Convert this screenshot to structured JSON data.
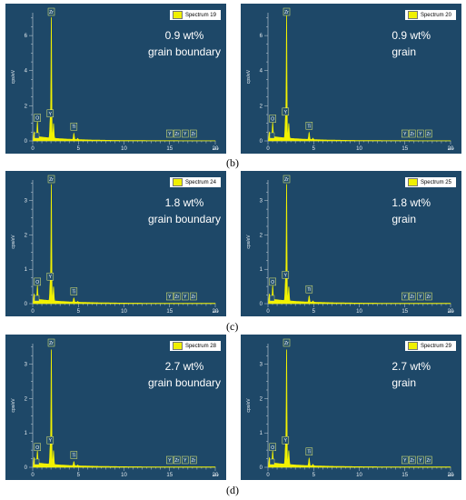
{
  "panels": [
    {
      "spectrum": "Spectrum 19",
      "line1": "0.9 wt%",
      "line2": "grain boundary",
      "y_unit": "cps/eV",
      "x_unit": "keV",
      "y_ticks": [
        "0",
        "2",
        "4",
        "6"
      ],
      "ylim": [
        0,
        7.3
      ],
      "peak_labels": [
        "O",
        "Zr",
        "Y",
        "Ti",
        "Y",
        "Zr",
        "Y",
        "Zr"
      ]
    },
    {
      "spectrum": "Spectrum 20",
      "line1": "0.9 wt%",
      "line2": "grain",
      "y_unit": "cps/eV",
      "x_unit": "keV",
      "y_ticks": [
        "0",
        "2",
        "4",
        "6"
      ],
      "ylim": [
        0,
        7.3
      ],
      "peak_labels": [
        "O",
        "Zr",
        "Y",
        "Ti",
        "Y",
        "Zr",
        "Y",
        "Zr"
      ]
    },
    {
      "spectrum": "Spectrum 24",
      "line1": "1.8 wt%",
      "line2": "grain boundary",
      "y_unit": "cps/eV",
      "x_unit": "keV",
      "y_ticks": [
        "0",
        "1",
        "2",
        "3"
      ],
      "ylim": [
        0,
        3.6
      ],
      "peak_labels": [
        "O",
        "Zr",
        "Y",
        "Ti",
        "Y",
        "Zr",
        "Y",
        "Zr"
      ]
    },
    {
      "spectrum": "Spectrum 25",
      "line1": "1.8 wt%",
      "line2": "grain",
      "y_unit": "cps/eV",
      "x_unit": "keV",
      "y_ticks": [
        "0",
        "1",
        "2",
        "3"
      ],
      "ylim": [
        0,
        3.6
      ],
      "peak_labels": [
        "O",
        "Zr",
        "Y",
        "Ti",
        "Y",
        "Zr",
        "Y",
        "Zr"
      ]
    },
    {
      "spectrum": "Spectrum 28",
      "line1": "2.7 wt%",
      "line2": "grain boundary",
      "y_unit": "cps/eV",
      "x_unit": "keV",
      "y_ticks": [
        "0",
        "1",
        "2",
        "3"
      ],
      "ylim": [
        0,
        3.6
      ],
      "peak_labels": [
        "O",
        "Zr",
        "Y",
        "Ti",
        "Y",
        "Zr",
        "Y",
        "Zr"
      ]
    },
    {
      "spectrum": "Spectrum 29",
      "line1": "2.7 wt%",
      "line2": "grain",
      "y_unit": "cps/eV",
      "x_unit": "keV",
      "y_ticks": [
        "0",
        "1",
        "2",
        "3"
      ],
      "ylim": [
        0,
        3.6
      ],
      "peak_labels": [
        "O",
        "Zr",
        "Y",
        "Ti",
        "Y",
        "Zr",
        "Y",
        "Zr"
      ]
    }
  ],
  "x_ticks": [
    "0",
    "5",
    "10",
    "15",
    "20"
  ],
  "row_labels": [
    "(b)",
    "(c)",
    "(d)"
  ],
  "chart_data": [
    {
      "type": "line",
      "xlim": [
        0,
        20
      ],
      "ylim": [
        0,
        7.3
      ],
      "title": "Spectrum 19",
      "peaks": [
        {
          "label": "O",
          "x": 0.52,
          "y": 0.85
        },
        {
          "label": "Zr",
          "x": 2.04,
          "y": 7.0
        },
        {
          "label": "Y",
          "x": 1.92,
          "y": 1.1
        },
        {
          "label": "Ti",
          "x": 4.51,
          "y": 0.35
        }
      ],
      "annotation": [
        "0.9 wt%",
        "grain boundary"
      ]
    },
    {
      "type": "line",
      "xlim": [
        0,
        20
      ],
      "ylim": [
        0,
        7.3
      ],
      "title": "Spectrum 20",
      "peaks": [
        {
          "label": "O",
          "x": 0.52,
          "y": 0.8
        },
        {
          "label": "Zr",
          "x": 2.04,
          "y": 7.1
        },
        {
          "label": "Y",
          "x": 1.92,
          "y": 1.2
        },
        {
          "label": "Ti",
          "x": 4.51,
          "y": 0.4
        }
      ],
      "annotation": [
        "0.9 wt%",
        "grain"
      ]
    },
    {
      "type": "line",
      "xlim": [
        0,
        20
      ],
      "ylim": [
        0,
        3.6
      ],
      "title": "Spectrum 24",
      "peaks": [
        {
          "label": "O",
          "x": 0.52,
          "y": 0.4
        },
        {
          "label": "Zr",
          "x": 2.04,
          "y": 3.45
        },
        {
          "label": "Y",
          "x": 1.92,
          "y": 0.55
        },
        {
          "label": "Ti",
          "x": 4.51,
          "y": 0.12
        }
      ],
      "annotation": [
        "1.8 wt%",
        "grain boundary"
      ]
    },
    {
      "type": "line",
      "xlim": [
        0,
        20
      ],
      "ylim": [
        0,
        3.6
      ],
      "title": "Spectrum 25",
      "peaks": [
        {
          "label": "O",
          "x": 0.52,
          "y": 0.4
        },
        {
          "label": "Zr",
          "x": 2.04,
          "y": 3.45
        },
        {
          "label": "Y",
          "x": 1.92,
          "y": 0.6
        },
        {
          "label": "Ti",
          "x": 4.51,
          "y": 0.18
        }
      ],
      "annotation": [
        "1.8 wt%",
        "grain"
      ]
    },
    {
      "type": "line",
      "xlim": [
        0,
        20
      ],
      "ylim": [
        0,
        3.6
      ],
      "title": "Spectrum 28",
      "peaks": [
        {
          "label": "O",
          "x": 0.52,
          "y": 0.35
        },
        {
          "label": "Zr",
          "x": 2.04,
          "y": 3.4
        },
        {
          "label": "Y",
          "x": 1.92,
          "y": 0.55
        },
        {
          "label": "Ti",
          "x": 4.51,
          "y": 0.12
        }
      ],
      "annotation": [
        "2.7 wt%",
        "grain boundary"
      ]
    },
    {
      "type": "line",
      "xlim": [
        0,
        20
      ],
      "ylim": [
        0,
        3.6
      ],
      "title": "Spectrum 29",
      "peaks": [
        {
          "label": "O",
          "x": 0.52,
          "y": 0.35
        },
        {
          "label": "Zr",
          "x": 2.04,
          "y": 3.4
        },
        {
          "label": "Y",
          "x": 1.92,
          "y": 0.55
        },
        {
          "label": "Ti",
          "x": 4.51,
          "y": 0.22
        }
      ],
      "annotation": [
        "2.7 wt%",
        "grain"
      ]
    }
  ]
}
